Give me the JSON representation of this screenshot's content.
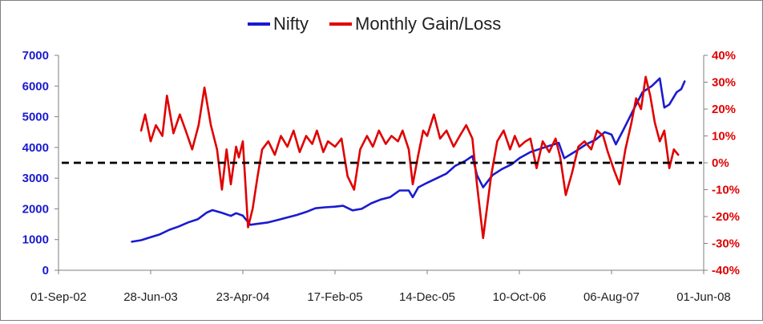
{
  "chart_data": {
    "type": "line",
    "legend": {
      "placement": "top-center",
      "entries": [
        "Nifty",
        "Monthly Gain/Loss"
      ]
    },
    "x_axis": {
      "type": "date",
      "range": [
        "2002-09-01",
        "2008-06-01"
      ],
      "tick_labels": [
        "01-Sep-02",
        "28-Jun-03",
        "23-Apr-04",
        "17-Feb-05",
        "14-Dec-05",
        "10-Oct-06",
        "06-Aug-07",
        "01-Jun-08"
      ],
      "tick_dates": [
        "2002-09-01",
        "2003-06-28",
        "2004-04-23",
        "2005-02-17",
        "2005-12-14",
        "2006-10-10",
        "2007-08-06",
        "2008-06-01"
      ]
    },
    "y_axis_left": {
      "range": [
        0,
        7000
      ],
      "tick_labels": [
        "0",
        "1000",
        "2000",
        "3000",
        "4000",
        "5000",
        "6000",
        "7000"
      ],
      "tick_values": [
        0,
        1000,
        2000,
        3000,
        4000,
        5000,
        6000,
        7000
      ],
      "color": "#1a1ad0"
    },
    "y_axis_right": {
      "range": [
        -40,
        40
      ],
      "tick_labels": [
        "-40%",
        "-30%",
        "-20%",
        "-10%",
        "0%",
        "10%",
        "20%",
        "30%",
        "40%"
      ],
      "tick_values": [
        -40,
        -30,
        -20,
        -10,
        0,
        10,
        20,
        30,
        40
      ],
      "color": "#e00000"
    },
    "grid": false,
    "reference_line": {
      "axis": "right",
      "value": 0,
      "style": "dashed",
      "color": "#000000"
    },
    "series": [
      {
        "name": "Nifty",
        "axis": "left",
        "color": "#1a1ad0",
        "points": [
          [
            "2003-04-28",
            930
          ],
          [
            "2003-05-28",
            980
          ],
          [
            "2003-06-28",
            1080
          ],
          [
            "2003-07-28",
            1170
          ],
          [
            "2003-08-28",
            1320
          ],
          [
            "2003-09-28",
            1430
          ],
          [
            "2003-10-28",
            1560
          ],
          [
            "2003-11-28",
            1660
          ],
          [
            "2003-12-28",
            1880
          ],
          [
            "2004-01-15",
            1960
          ],
          [
            "2004-02-15",
            1870
          ],
          [
            "2004-03-15",
            1770
          ],
          [
            "2004-04-01",
            1860
          ],
          [
            "2004-04-23",
            1780
          ],
          [
            "2004-05-17",
            1480
          ],
          [
            "2004-06-15",
            1520
          ],
          [
            "2004-07-15",
            1560
          ],
          [
            "2004-08-15",
            1640
          ],
          [
            "2004-09-15",
            1720
          ],
          [
            "2004-10-15",
            1800
          ],
          [
            "2004-11-15",
            1900
          ],
          [
            "2004-12-15",
            2020
          ],
          [
            "2005-01-15",
            2050
          ],
          [
            "2005-02-17",
            2070
          ],
          [
            "2005-03-15",
            2100
          ],
          [
            "2005-04-15",
            1950
          ],
          [
            "2005-05-15",
            2000
          ],
          [
            "2005-06-15",
            2180
          ],
          [
            "2005-07-15",
            2300
          ],
          [
            "2005-08-15",
            2380
          ],
          [
            "2005-09-15",
            2600
          ],
          [
            "2005-10-15",
            2600
          ],
          [
            "2005-10-28",
            2380
          ],
          [
            "2005-11-15",
            2700
          ],
          [
            "2005-12-14",
            2850
          ],
          [
            "2006-01-15",
            3000
          ],
          [
            "2006-02-15",
            3150
          ],
          [
            "2006-03-15",
            3400
          ],
          [
            "2006-04-15",
            3550
          ],
          [
            "2006-05-10",
            3720
          ],
          [
            "2006-05-25",
            3100
          ],
          [
            "2006-06-14",
            2700
          ],
          [
            "2006-07-15",
            3100
          ],
          [
            "2006-08-15",
            3300
          ],
          [
            "2006-09-15",
            3450
          ],
          [
            "2006-10-10",
            3650
          ],
          [
            "2006-11-15",
            3850
          ],
          [
            "2006-12-15",
            3950
          ],
          [
            "2007-01-15",
            4050
          ],
          [
            "2007-02-15",
            4150
          ],
          [
            "2007-03-05",
            3650
          ],
          [
            "2007-03-30",
            3800
          ],
          [
            "2007-04-15",
            3900
          ],
          [
            "2007-05-15",
            4100
          ],
          [
            "2007-06-15",
            4250
          ],
          [
            "2007-07-15",
            4500
          ],
          [
            "2007-08-06",
            4420
          ],
          [
            "2007-08-20",
            4100
          ],
          [
            "2007-09-15",
            4600
          ],
          [
            "2007-10-15",
            5200
          ],
          [
            "2007-11-15",
            5800
          ],
          [
            "2007-12-15",
            6000
          ],
          [
            "2008-01-10",
            6250
          ],
          [
            "2008-01-25",
            5300
          ],
          [
            "2008-02-10",
            5400
          ],
          [
            "2008-03-05",
            5800
          ],
          [
            "2008-03-20",
            5900
          ],
          [
            "2008-03-31",
            6150
          ]
        ]
      },
      {
        "name": "Monthly Gain/Loss",
        "axis": "right",
        "color": "#e00000",
        "points": [
          [
            "2003-05-28",
            12
          ],
          [
            "2003-06-10",
            18
          ],
          [
            "2003-06-28",
            8
          ],
          [
            "2003-07-15",
            14
          ],
          [
            "2003-08-05",
            10
          ],
          [
            "2003-08-20",
            25
          ],
          [
            "2003-09-10",
            11
          ],
          [
            "2003-10-01",
            18
          ],
          [
            "2003-10-20",
            12
          ],
          [
            "2003-11-10",
            5
          ],
          [
            "2003-12-01",
            14
          ],
          [
            "2003-12-20",
            28
          ],
          [
            "2004-01-10",
            14
          ],
          [
            "2004-01-30",
            5
          ],
          [
            "2004-02-15",
            -10
          ],
          [
            "2004-03-01",
            5
          ],
          [
            "2004-03-15",
            -8
          ],
          [
            "2004-04-01",
            6
          ],
          [
            "2004-04-10",
            2
          ],
          [
            "2004-04-23",
            8
          ],
          [
            "2004-05-10",
            -24
          ],
          [
            "2004-05-25",
            -17
          ],
          [
            "2004-06-10",
            -5
          ],
          [
            "2004-06-25",
            5
          ],
          [
            "2004-07-15",
            8
          ],
          [
            "2004-08-05",
            3
          ],
          [
            "2004-08-25",
            10
          ],
          [
            "2004-09-15",
            6
          ],
          [
            "2004-10-05",
            12
          ],
          [
            "2004-10-25",
            4
          ],
          [
            "2004-11-15",
            10
          ],
          [
            "2004-12-05",
            7
          ],
          [
            "2004-12-20",
            12
          ],
          [
            "2005-01-10",
            4
          ],
          [
            "2005-01-25",
            8
          ],
          [
            "2005-02-17",
            6
          ],
          [
            "2005-03-10",
            9
          ],
          [
            "2005-03-30",
            -5
          ],
          [
            "2005-04-20",
            -10
          ],
          [
            "2005-05-10",
            5
          ],
          [
            "2005-06-01",
            10
          ],
          [
            "2005-06-20",
            6
          ],
          [
            "2005-07-10",
            12
          ],
          [
            "2005-08-01",
            7
          ],
          [
            "2005-08-20",
            10
          ],
          [
            "2005-09-10",
            8
          ],
          [
            "2005-09-25",
            12
          ],
          [
            "2005-10-15",
            5
          ],
          [
            "2005-10-28",
            -8
          ],
          [
            "2005-11-15",
            3
          ],
          [
            "2005-12-01",
            12
          ],
          [
            "2005-12-14",
            10
          ],
          [
            "2006-01-05",
            18
          ],
          [
            "2006-01-25",
            9
          ],
          [
            "2006-02-15",
            12
          ],
          [
            "2006-03-10",
            6
          ],
          [
            "2006-03-30",
            10
          ],
          [
            "2006-04-20",
            14
          ],
          [
            "2006-05-10",
            9
          ],
          [
            "2006-05-25",
            -8
          ],
          [
            "2006-06-14",
            -28
          ],
          [
            "2006-07-10",
            -5
          ],
          [
            "2006-07-30",
            8
          ],
          [
            "2006-08-20",
            12
          ],
          [
            "2006-09-10",
            5
          ],
          [
            "2006-09-25",
            10
          ],
          [
            "2006-10-10",
            6
          ],
          [
            "2006-10-30",
            8
          ],
          [
            "2006-11-15",
            9
          ],
          [
            "2006-12-05",
            -2
          ],
          [
            "2006-12-25",
            8
          ],
          [
            "2007-01-15",
            4
          ],
          [
            "2007-02-05",
            9
          ],
          [
            "2007-02-20",
            2
          ],
          [
            "2007-03-10",
            -12
          ],
          [
            "2007-03-30",
            -4
          ],
          [
            "2007-04-20",
            6
          ],
          [
            "2007-05-10",
            8
          ],
          [
            "2007-06-01",
            5
          ],
          [
            "2007-06-20",
            12
          ],
          [
            "2007-07-10",
            10
          ],
          [
            "2007-07-25",
            4
          ],
          [
            "2007-08-15",
            -3
          ],
          [
            "2007-09-01",
            -8
          ],
          [
            "2007-09-20",
            5
          ],
          [
            "2007-10-10",
            15
          ],
          [
            "2007-10-25",
            24
          ],
          [
            "2007-11-10",
            20
          ],
          [
            "2007-11-25",
            32
          ],
          [
            "2007-12-10",
            25
          ],
          [
            "2007-12-25",
            15
          ],
          [
            "2008-01-10",
            8
          ],
          [
            "2008-01-25",
            12
          ],
          [
            "2008-02-10",
            -2
          ],
          [
            "2008-02-25",
            5
          ],
          [
            "2008-03-10",
            3
          ]
        ]
      }
    ]
  }
}
